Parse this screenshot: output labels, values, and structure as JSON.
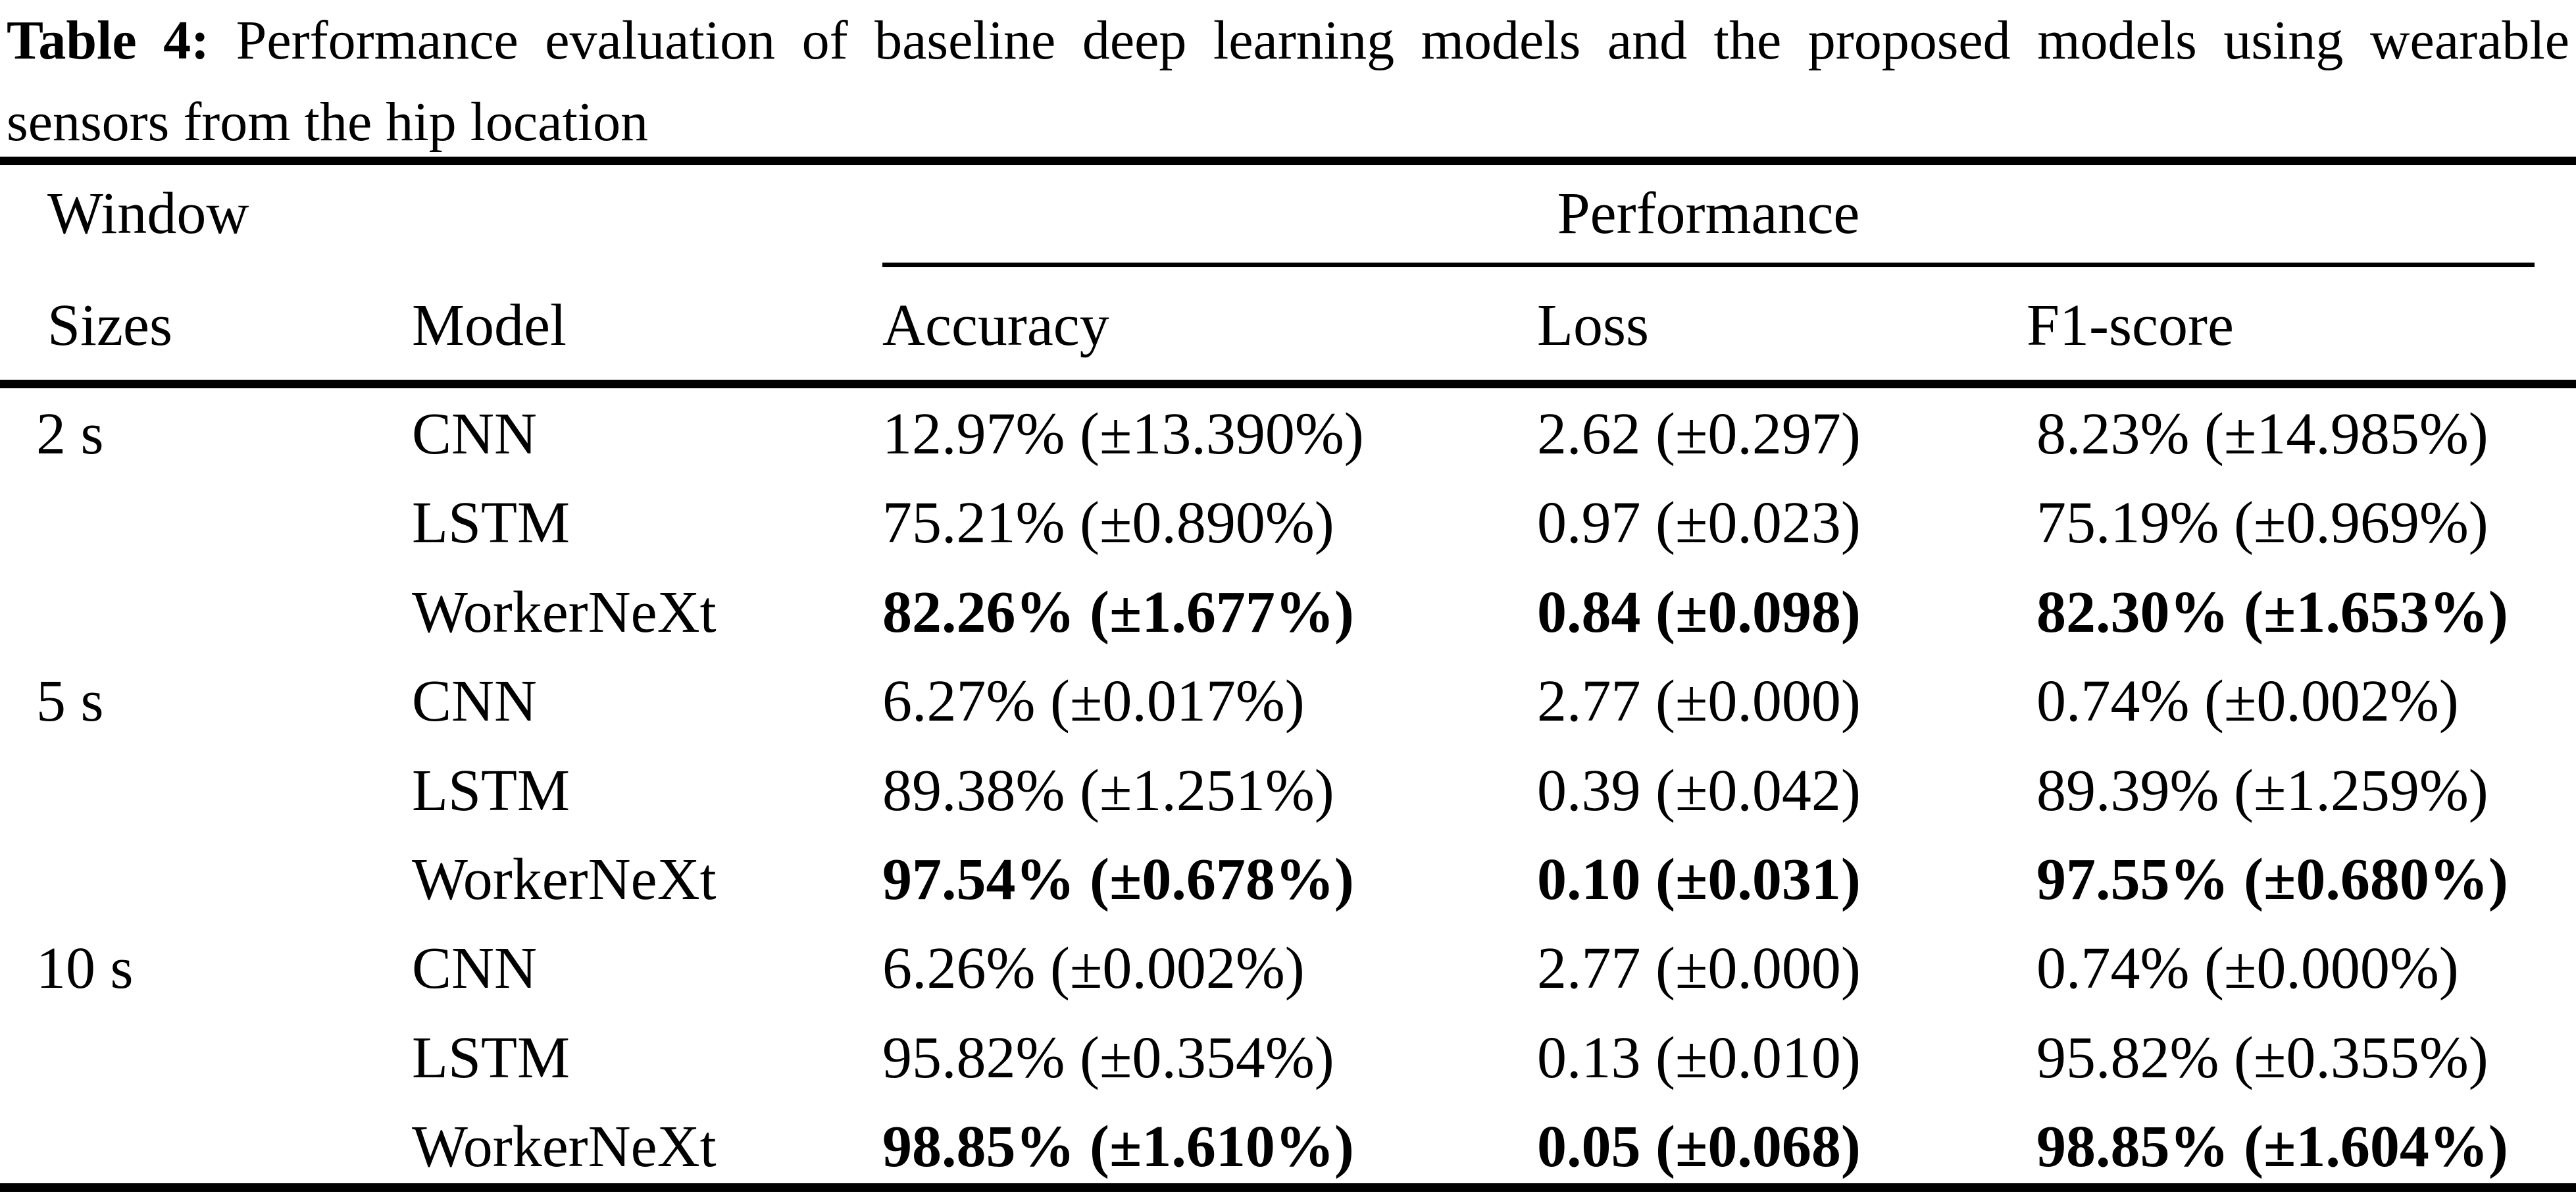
{
  "caption": {
    "label": "Table 4:",
    "line1": "Performance evaluation of baseline deep learning models and the proposed models using wearable",
    "line2": "sensors from the hip location"
  },
  "table": {
    "headers": {
      "window_row1": "Window",
      "window_row2": "Sizes",
      "model": "Model",
      "performance_group": "Performance",
      "accuracy": "Accuracy",
      "loss": "Loss",
      "f1": "F1-score"
    },
    "rows": [
      {
        "window": "2 s",
        "model": "CNN",
        "accuracy": "12.97% (±13.390%)",
        "loss": "2.62 (±0.297)",
        "f1": "8.23% (±14.985%)",
        "highlight": false
      },
      {
        "window": "",
        "model": "LSTM",
        "accuracy": "75.21% (±0.890%)",
        "loss": "0.97 (±0.023)",
        "f1": "75.19% (±0.969%)",
        "highlight": false
      },
      {
        "window": "",
        "model": "WorkerNeXt",
        "accuracy": "82.26% (±1.677%)",
        "loss": "0.84 (±0.098)",
        "f1": "82.30% (±1.653%)",
        "highlight": true
      },
      {
        "window": "5 s",
        "model": "CNN",
        "accuracy": "6.27% (±0.017%)",
        "loss": "2.77 (±0.000)",
        "f1": "0.74% (±0.002%)",
        "highlight": false
      },
      {
        "window": "",
        "model": "LSTM",
        "accuracy": "89.38% (±1.251%)",
        "loss": "0.39 (±0.042)",
        "f1": "89.39% (±1.259%)",
        "highlight": false
      },
      {
        "window": "",
        "model": "WorkerNeXt",
        "accuracy": "97.54% (±0.678%)",
        "loss": "0.10 (±0.031)",
        "f1": "97.55% (±0.680%)",
        "highlight": true
      },
      {
        "window": "10 s",
        "model": "CNN",
        "accuracy": "6.26% (±0.002%)",
        "loss": "2.77 (±0.000)",
        "f1": "0.74% (±0.000%)",
        "highlight": false
      },
      {
        "window": "",
        "model": "LSTM",
        "accuracy": "95.82% (±0.354%)",
        "loss": "0.13 (±0.010)",
        "f1": "95.82% (±0.355%)",
        "highlight": false
      },
      {
        "window": "",
        "model": "WorkerNeXt",
        "accuracy": "98.85% (±1.610%)",
        "loss": "0.05 (±0.068)",
        "f1": "98.85% (±1.604%)",
        "highlight": true
      }
    ]
  },
  "colors": {
    "text": "#000000",
    "background": "#ffffff",
    "rule": "#000000"
  }
}
